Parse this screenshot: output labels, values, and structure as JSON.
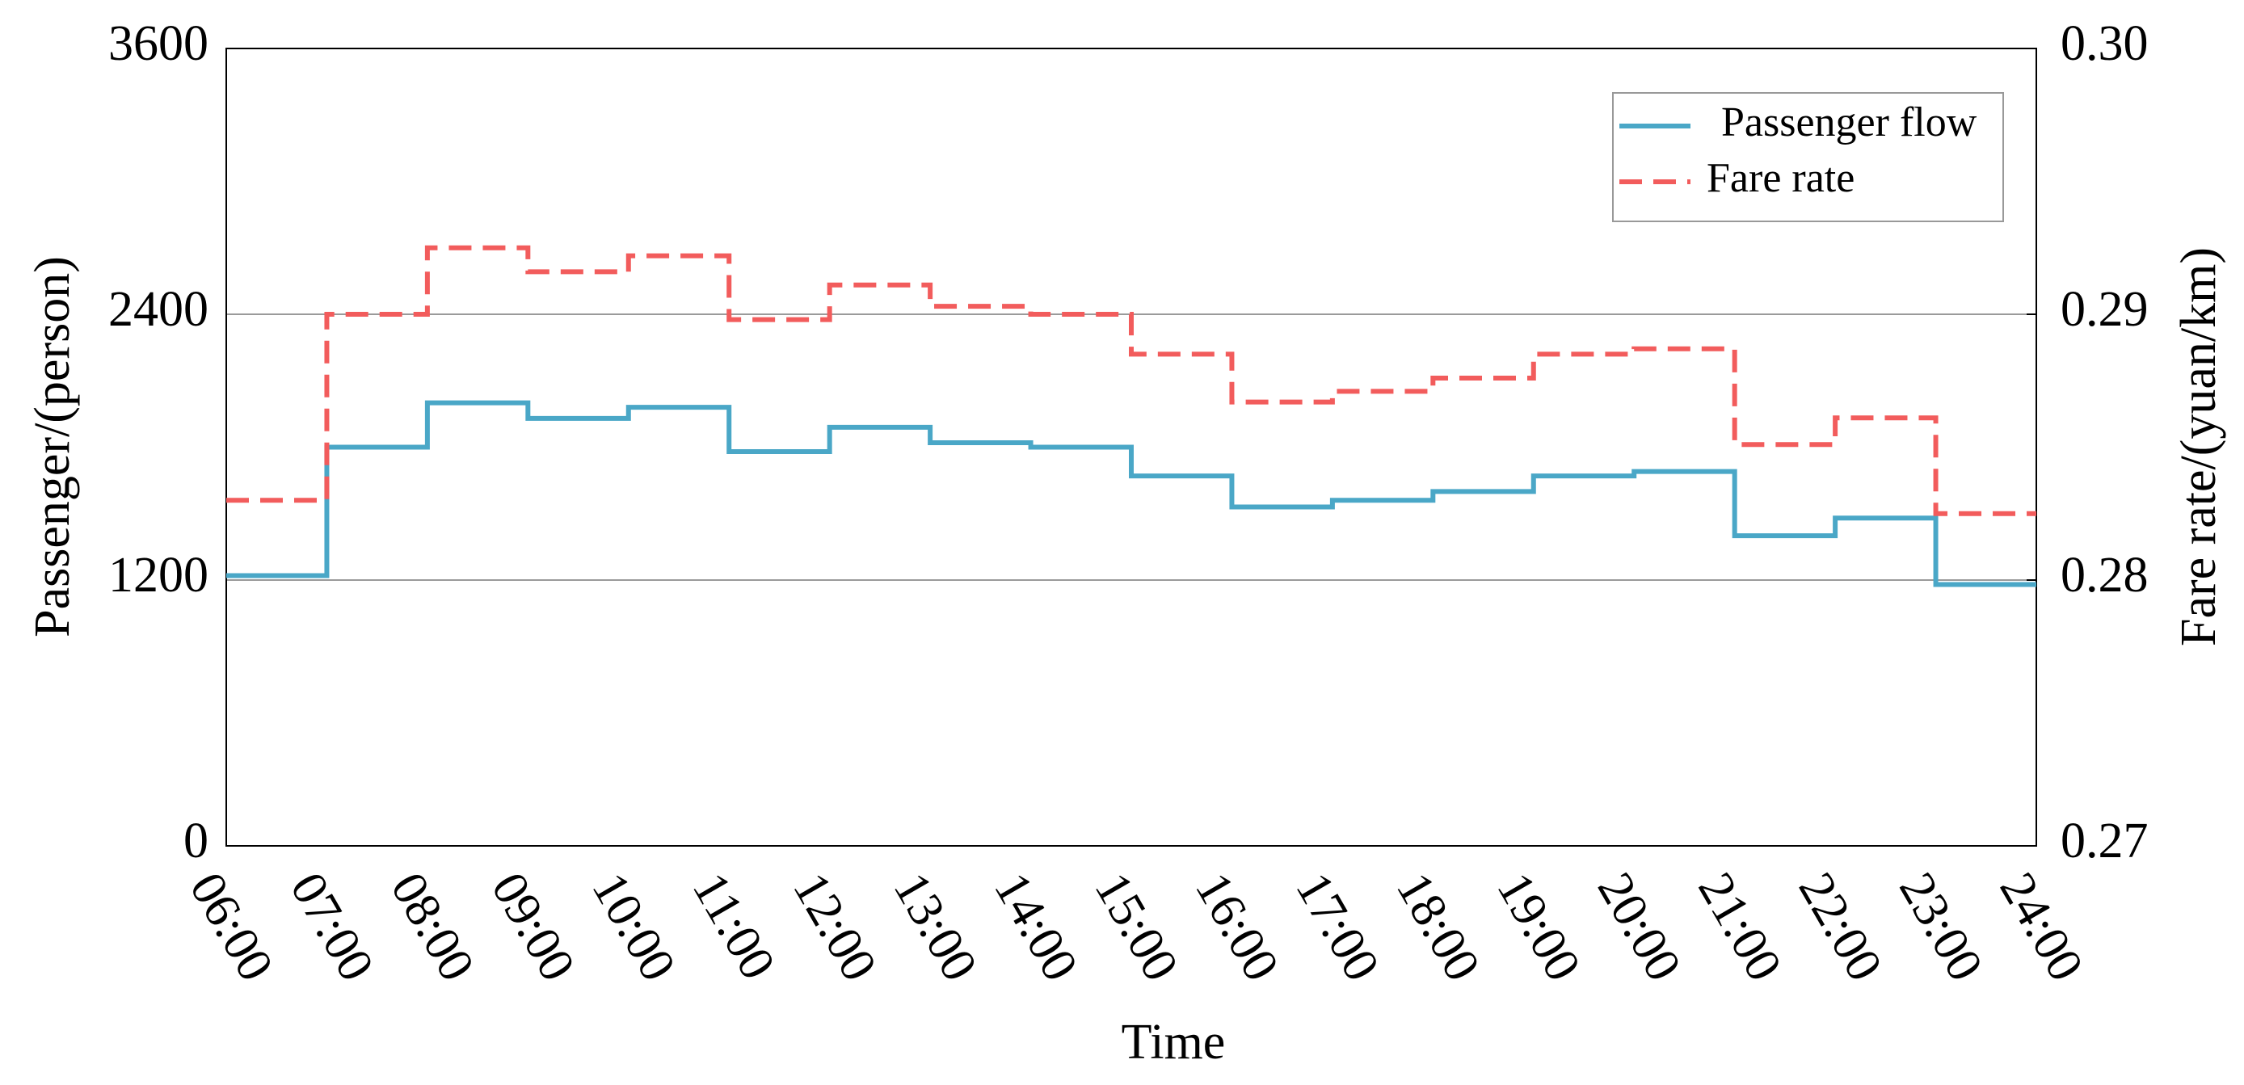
{
  "chart_data": {
    "type": "step",
    "xlabel": "Time",
    "ylabel": "Passenger/(person)",
    "y2label": "Fare rate/(yuan/km)",
    "categories": [
      "06:00",
      "07:00",
      "08:00",
      "09:00",
      "10:00",
      "11:00",
      "12:00",
      "13:00",
      "14:00",
      "15:00",
      "16:00",
      "17:00",
      "18:00",
      "19:00",
      "20:00",
      "21:00",
      "22:00",
      "23:00",
      "24:00"
    ],
    "series": [
      {
        "name": "Passenger flow",
        "color": "#4aa7c7",
        "dash": false,
        "values": [
          1220,
          1800,
          2000,
          1930,
          1980,
          1780,
          1890,
          1820,
          1800,
          1670,
          1530,
          1560,
          1600,
          1670,
          1690,
          1400,
          1480,
          1180,
          1180
        ]
      },
      {
        "name": "Fare rate",
        "color": "#f25c5c",
        "dash": true,
        "axis": "y2",
        "values": [
          0.283,
          0.29,
          0.2925,
          0.2916,
          0.2922,
          0.2898,
          0.2911,
          0.2903,
          0.29,
          0.2885,
          0.2867,
          0.2871,
          0.2876,
          0.2885,
          0.2887,
          0.2851,
          0.2861,
          0.2825,
          0.2825
        ]
      }
    ],
    "ylim": [
      0,
      3600
    ],
    "yticks": [
      0,
      1200,
      2400,
      3600
    ],
    "y2lim": [
      0.27,
      0.3
    ],
    "y2ticks": [
      0.27,
      0.28,
      0.29,
      {
        "value": 0.3,
        "label": "0.30"
      }
    ],
    "grid": true,
    "legend": "upper right"
  }
}
